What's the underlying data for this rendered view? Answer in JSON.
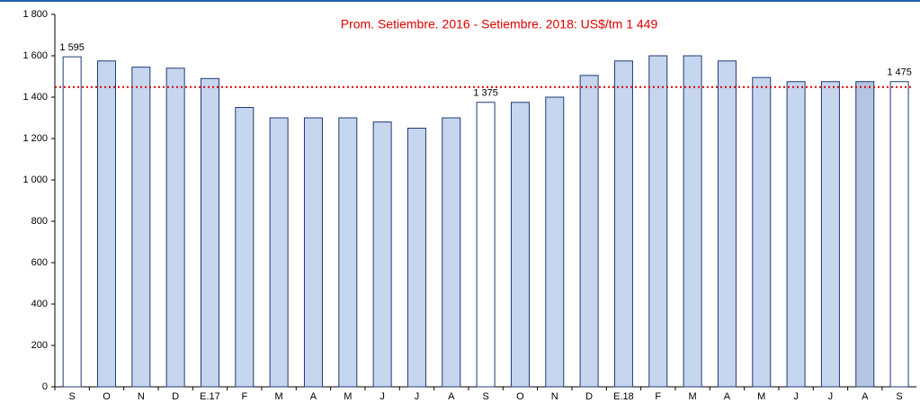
{
  "chart_data": {
    "type": "bar",
    "categories": [
      "S",
      "O",
      "N",
      "D",
      "E.17",
      "F",
      "M",
      "A",
      "M",
      "J",
      "J",
      "A",
      "S",
      "O",
      "N",
      "D",
      "E.18",
      "F",
      "M",
      "A",
      "M",
      "J",
      "J",
      "A",
      "S"
    ],
    "values": [
      1595,
      1575,
      1545,
      1540,
      1490,
      1350,
      1300,
      1300,
      1300,
      1280,
      1250,
      1300,
      1375,
      1375,
      1400,
      1505,
      1575,
      1600,
      1600,
      1575,
      1495,
      1475,
      1475,
      1475,
      1475
    ],
    "value_labels": [
      "1 595",
      null,
      null,
      null,
      null,
      null,
      null,
      null,
      null,
      null,
      null,
      null,
      "1 375",
      null,
      null,
      null,
      null,
      null,
      null,
      null,
      null,
      null,
      null,
      null,
      "1 475"
    ],
    "colors": [
      "#ffffff",
      "#c6d6ef",
      "#c6d6ef",
      "#c6d6ef",
      "#c6d6ef",
      "#c6d6ef",
      "#c6d6ef",
      "#c6d6ef",
      "#c6d6ef",
      "#c6d6ef",
      "#c6d6ef",
      "#c6d6ef",
      "#ffffff",
      "#c6d6ef",
      "#c6d6ef",
      "#c6d6ef",
      "#c6d6ef",
      "#c6d6ef",
      "#c6d6ef",
      "#c6d6ef",
      "#c6d6ef",
      "#c6d6ef",
      "#c6d6ef",
      "#b3c5e0",
      "#ffffff"
    ],
    "edge_color": "#1f3a78",
    "average_line": {
      "value": 1449,
      "label": "Prom. Setiembre. 2016 - Setiembre. 2018: US$/tm 1 449",
      "color": "#e00000"
    },
    "ylim": [
      0,
      1800
    ],
    "yticks": [
      0,
      200,
      400,
      600,
      800,
      {
        "value": 1000,
        "label": "1 000"
      },
      {
        "value": 1200,
        "label": "1 200"
      },
      {
        "value": 1400,
        "label": "1 400"
      },
      {
        "value": 1600,
        "label": "1 600"
      },
      {
        "value": 1800,
        "label": "1 800"
      }
    ]
  }
}
